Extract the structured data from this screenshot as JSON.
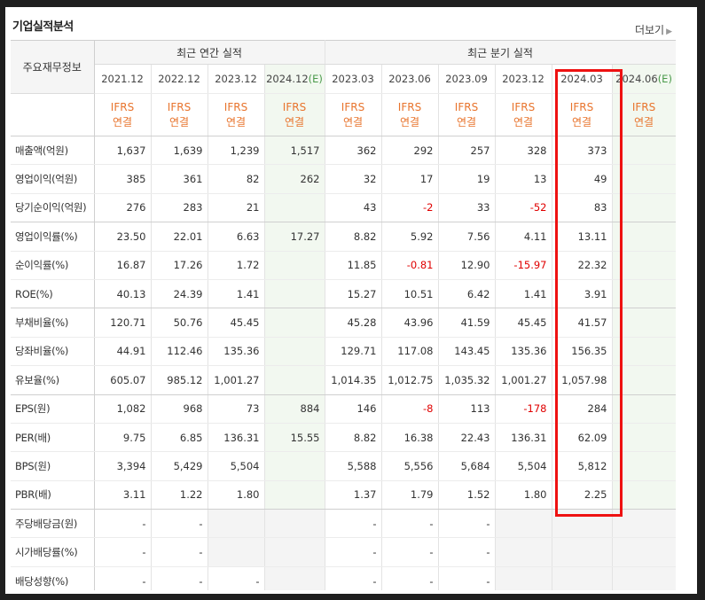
{
  "header": {
    "title": "기업실적분석",
    "more_label": "더보기"
  },
  "groups": {
    "label_col": "주요재무정보",
    "annual": "최근 연간 실적",
    "quarter": "최근 분기 실적"
  },
  "periods": {
    "annual": [
      {
        "date": "2021.12",
        "suffix": ""
      },
      {
        "date": "2022.12",
        "suffix": ""
      },
      {
        "date": "2023.12",
        "suffix": ""
      },
      {
        "date": "2024.12",
        "suffix": "(E)"
      }
    ],
    "quarter": [
      {
        "date": "2023.03",
        "suffix": ""
      },
      {
        "date": "2023.06",
        "suffix": ""
      },
      {
        "date": "2023.09",
        "suffix": ""
      },
      {
        "date": "2023.12",
        "suffix": ""
      },
      {
        "date": "2024.03",
        "suffix": ""
      },
      {
        "date": "2024.06",
        "suffix": "(E)"
      }
    ]
  },
  "ifrs": {
    "line1": "IFRS",
    "line2": "연결"
  },
  "rows": [
    {
      "label": "매출액(억원)",
      "values": [
        "1,637",
        "1,639",
        "1,239",
        "1,517",
        "362",
        "292",
        "257",
        "328",
        "373",
        ""
      ]
    },
    {
      "label": "영업이익(억원)",
      "values": [
        "385",
        "361",
        "82",
        "262",
        "32",
        "17",
        "19",
        "13",
        "49",
        ""
      ]
    },
    {
      "label": "당기순이익(억원)",
      "values": [
        "276",
        "283",
        "21",
        "",
        "43",
        "-2",
        "33",
        "-52",
        "83",
        ""
      ]
    },
    {
      "label": "영업이익률(%)",
      "values": [
        "23.50",
        "22.01",
        "6.63",
        "17.27",
        "8.82",
        "5.92",
        "7.56",
        "4.11",
        "13.11",
        ""
      ]
    },
    {
      "label": "순이익률(%)",
      "values": [
        "16.87",
        "17.26",
        "1.72",
        "",
        "11.85",
        "-0.81",
        "12.90",
        "-15.97",
        "22.32",
        ""
      ]
    },
    {
      "label": "ROE(%)",
      "values": [
        "40.13",
        "24.39",
        "1.41",
        "",
        "15.27",
        "10.51",
        "6.42",
        "1.41",
        "3.91",
        ""
      ]
    },
    {
      "label": "부채비율(%)",
      "values": [
        "120.71",
        "50.76",
        "45.45",
        "",
        "45.28",
        "43.96",
        "41.59",
        "45.45",
        "41.57",
        ""
      ]
    },
    {
      "label": "당좌비율(%)",
      "values": [
        "44.91",
        "112.46",
        "135.36",
        "",
        "129.71",
        "117.08",
        "143.45",
        "135.36",
        "156.35",
        ""
      ]
    },
    {
      "label": "유보율(%)",
      "values": [
        "605.07",
        "985.12",
        "1,001.27",
        "",
        "1,014.35",
        "1,012.75",
        "1,035.32",
        "1,001.27",
        "1,057.98",
        ""
      ]
    },
    {
      "label": "EPS(원)",
      "values": [
        "1,082",
        "968",
        "73",
        "884",
        "146",
        "-8",
        "113",
        "-178",
        "284",
        ""
      ]
    },
    {
      "label": "PER(배)",
      "values": [
        "9.75",
        "6.85",
        "136.31",
        "15.55",
        "8.82",
        "16.38",
        "22.43",
        "136.31",
        "62.09",
        ""
      ]
    },
    {
      "label": "BPS(원)",
      "values": [
        "3,394",
        "5,429",
        "5,504",
        "",
        "5,588",
        "5,556",
        "5,684",
        "5,504",
        "5,812",
        ""
      ]
    },
    {
      "label": "PBR(배)",
      "values": [
        "3.11",
        "1.22",
        "1.80",
        "",
        "1.37",
        "1.79",
        "1.52",
        "1.80",
        "2.25",
        ""
      ]
    },
    {
      "label": "주당배당금(원)",
      "values": [
        "-",
        "-",
        "",
        "",
        "-",
        "-",
        "-",
        "",
        "",
        ""
      ]
    },
    {
      "label": "시가배당률(%)",
      "values": [
        "-",
        "-",
        "",
        "",
        "-",
        "-",
        "-",
        "",
        "",
        ""
      ]
    },
    {
      "label": "배당성향(%)",
      "values": [
        "-",
        "-",
        "-",
        "",
        "-",
        "-",
        "-",
        "",
        "",
        ""
      ]
    }
  ],
  "colors": {
    "negative": "#e00000",
    "ifrs": "#e8742d",
    "estimate_bg": "#f2f8f0",
    "highlight": "#ee1111"
  }
}
